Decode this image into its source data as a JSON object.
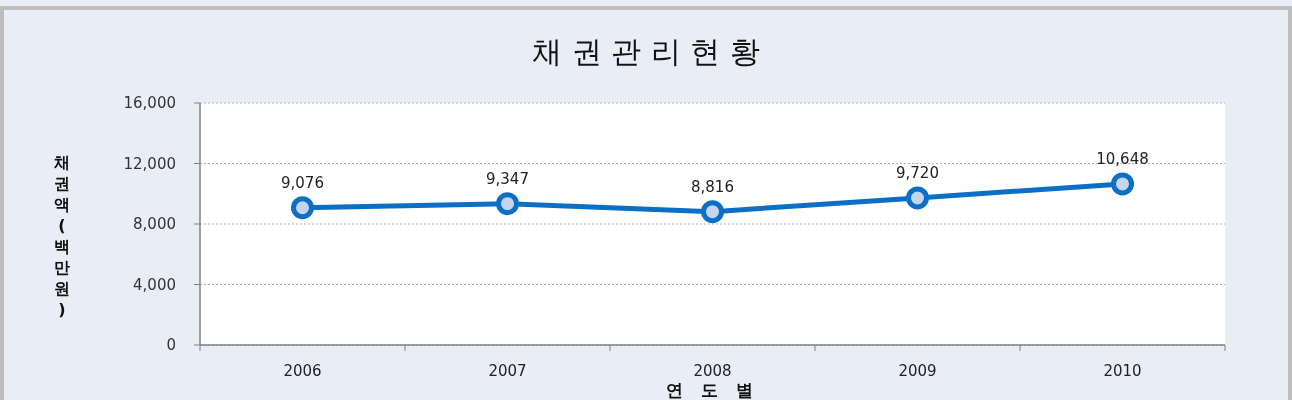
{
  "chart_data": {
    "type": "line",
    "title": "채 권 관 리 현 황",
    "xlabel": "연 도 별",
    "ylabel": "채권액(백만원)",
    "categories": [
      "2006",
      "2007",
      "2008",
      "2009",
      "2010"
    ],
    "series": [
      {
        "color": "#0b6fc6",
        "values": [
          9076,
          9347,
          8816,
          9720,
          10648
        ],
        "value_labels": [
          "9,076",
          "9,347",
          "8,816",
          "9,720",
          "10,648"
        ]
      }
    ],
    "ylim": [
      0,
      16000
    ],
    "yticks": [
      {
        "value": 0,
        "label": "0"
      },
      {
        "value": 4000,
        "label": "4,000"
      },
      {
        "value": 8000,
        "label": "8,000"
      },
      {
        "value": 12000,
        "label": "12,000"
      },
      {
        "value": 16000,
        "label": "16,000"
      }
    ],
    "grid": "y",
    "marker": "circle",
    "line_style": "solid"
  }
}
